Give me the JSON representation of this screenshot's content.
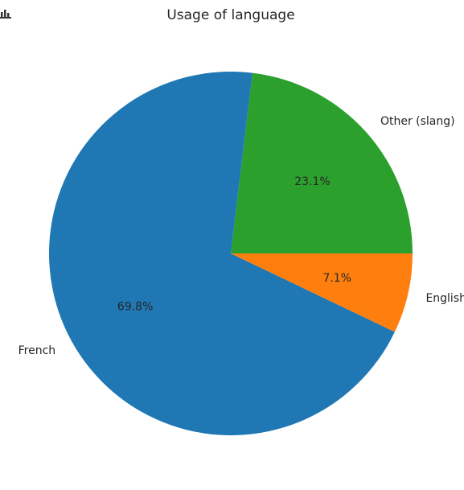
{
  "toolbar": {
    "icon": "bar-chart-icon"
  },
  "chart_data": {
    "type": "pie",
    "title": "Usage of language",
    "slices": [
      {
        "label": "Other (slang)",
        "value": 23.1,
        "pct_label": "23.1%",
        "color": "#2ca02c"
      },
      {
        "label": "French",
        "value": 69.8,
        "pct_label": "69.8%",
        "color": "#1f77b4"
      },
      {
        "label": "English",
        "value": 7.1,
        "pct_label": "7.1%",
        "color": "#ff7f0e"
      }
    ],
    "start_angle_deg": 0,
    "direction": "counterclockwise",
    "legend": "none"
  }
}
